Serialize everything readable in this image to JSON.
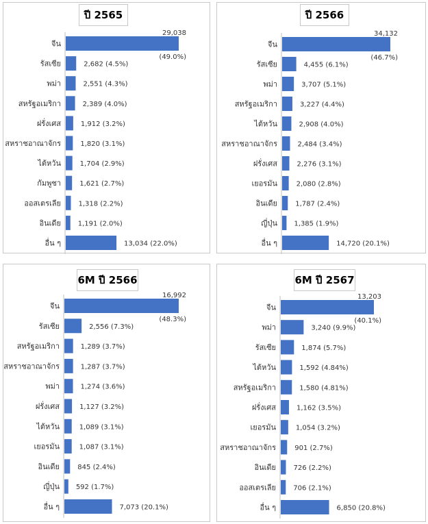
{
  "chart_data": [
    {
      "type": "bar",
      "title": "ปี 2565",
      "categories": [
        "จีน",
        "รัสเซีย",
        "พม่า",
        "สหรัฐอเมริกา",
        "ฝรั่งเศส",
        "สหราชอาณาจักร",
        "ไต้หวัน",
        "กัมพูชา",
        "ออสเตรเลีย",
        "อินเดีย",
        "อื่น ๆ"
      ],
      "values": [
        29038,
        2682,
        2551,
        2389,
        1912,
        1820,
        1704,
        1621,
        1318,
        1191,
        13034
      ],
      "labels": [
        "29,038",
        "2,682 (4.5%)",
        "2,551 (4.3%)",
        "2,389 (4.0%)",
        "1,912 (3.2%)",
        "1,820 (3.1%)",
        "1,704 (2.9%)",
        "1,621 (2.7%)",
        "1,318 (2.2%)",
        "1,191 (2.0%)",
        "13,034 (22.0%)"
      ],
      "top_pct": "(49.0%)",
      "bar_color": "#4472C4"
    },
    {
      "type": "bar",
      "title": "ปี 2566",
      "categories": [
        "จีน",
        "รัสเซีย",
        "พม่า",
        "สหรัฐอเมริกา",
        "ไต้หวัน",
        "สหราชอาณาจักร",
        "ฝรั่งเศส",
        "เยอรมัน",
        "อินเดีย",
        "ญี่ปุ่น",
        "อื่น ๆ"
      ],
      "values": [
        34132,
        4455,
        3707,
        3227,
        2908,
        2484,
        2276,
        2080,
        1787,
        1385,
        14720
      ],
      "labels": [
        "34,132",
        "4,455 (6.1%)",
        "3,707 (5.1%)",
        "3,227 (4.4%)",
        "2,908 (4.0%)",
        "2,484 (3.4%)",
        "2,276 (3.1%)",
        "2,080 (2.8%)",
        "1,787 (2.4%)",
        "1,385 (1.9%)",
        "14,720 (20.1%)"
      ],
      "top_pct": "(46.7%)",
      "bar_color": "#4472C4"
    },
    {
      "type": "bar",
      "title": "6M ปี 2566",
      "categories": [
        "จีน",
        "รัสเซีย",
        "สหรัฐอเมริกา",
        "สหราชอาณาจักร",
        "พม่า",
        "ฝรั่งเศส",
        "ไต้หวัน",
        "เยอรมัน",
        "อินเดีย",
        "ญี่ปุ่น",
        "อื่น ๆ"
      ],
      "values": [
        16992,
        2556,
        1289,
        1287,
        1274,
        1127,
        1089,
        1087,
        845,
        592,
        7073
      ],
      "labels": [
        "16,992",
        "2,556 (7.3%)",
        "1,289 (3.7%)",
        "1,287 (3.7%)",
        "1,274 (3.6%)",
        "1,127 (3.2%)",
        "1,089 (3.1%)",
        "1,087 (3.1%)",
        "845 (2.4%)",
        "592 (1.7%)",
        "7,073 (20.1%)"
      ],
      "top_pct": "(48.3%)",
      "bar_color": "#4472C4"
    },
    {
      "type": "bar",
      "title": "6M ปี 2567",
      "categories": [
        "จีน",
        "พม่า",
        "รัสเซีย",
        "ไต้หวัน",
        "สหรัฐอเมริกา",
        "ฝรั่งเศส",
        "เยอรมัน",
        "สหราชอาณาจักร",
        "อินเดีย",
        "ออสเตรเลีย",
        "อื่น ๆ"
      ],
      "values": [
        13203,
        3240,
        1874,
        1592,
        1580,
        1162,
        1054,
        901,
        726,
        706,
        6850
      ],
      "labels": [
        "13,203",
        "3,240 (9.9%)",
        "1,874 (5.7%)",
        "1,592 (4.84%)",
        "1,580 (4.81%)",
        "1,162 (3.5%)",
        "1,054 (3.2%)",
        "901 (2.7%)",
        "726 (2.2%)",
        "706 (2.1%)",
        "6,850 (20.8%)"
      ],
      "top_pct": "(40.1%)",
      "bar_color": "#4472C4"
    }
  ]
}
